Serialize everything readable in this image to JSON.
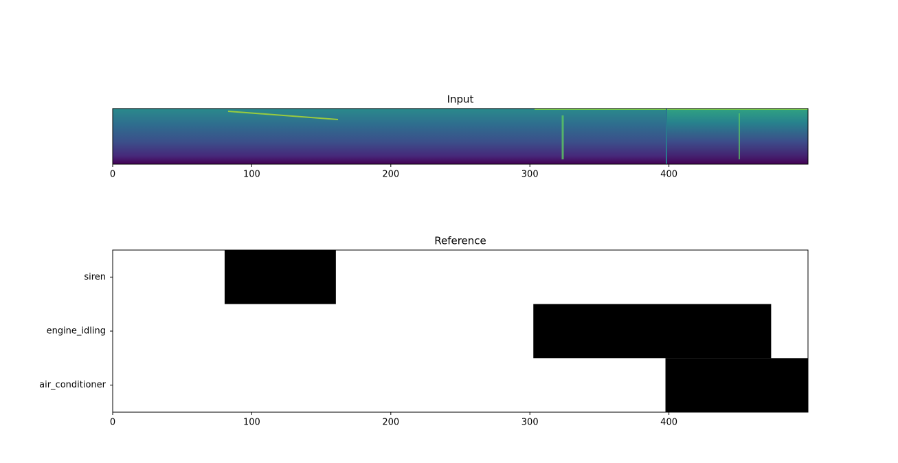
{
  "chart_data": [
    {
      "type": "spectrogram",
      "title": "Input",
      "xlim": [
        0,
        500
      ],
      "xticks": [
        0,
        100,
        200,
        300,
        400
      ]
    },
    {
      "type": "event_roll",
      "title": "Reference",
      "xlim": [
        0,
        500
      ],
      "xticks": [
        0,
        100,
        200,
        300,
        400
      ],
      "color": "#000000",
      "rows": [
        {
          "label": "siren",
          "intervals": [
            [
              80.5,
              160.5
            ]
          ]
        },
        {
          "label": "engine_idling",
          "intervals": [
            [
              302.5,
              473.5
            ]
          ]
        },
        {
          "label": "air_conditioner",
          "intervals": [
            [
              397.5,
              500
            ]
          ]
        }
      ]
    }
  ]
}
